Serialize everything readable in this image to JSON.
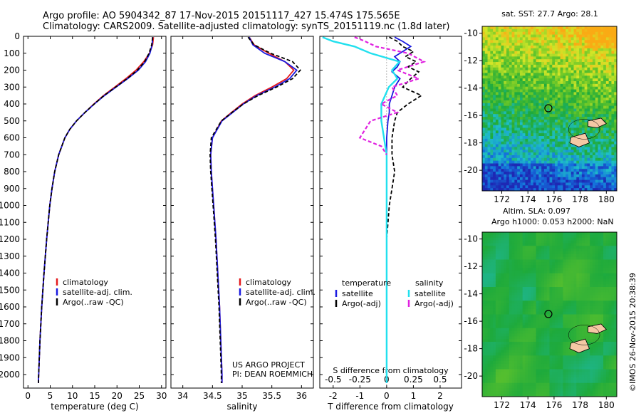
{
  "header": {
    "line1": "Argo profile: AO 5904342_87 17-Nov-2015 20151117_427 15.474S 175.565E",
    "line2": "Climatology: CARS2009. Satellite-adjusted climatology: synTS_20151119.nc (1.8d later)"
  },
  "side_label": "©IMOS 26-Nov-2015 20:38:39",
  "colors": {
    "climatology": "#e41a1c",
    "satellite": "#1a1ae0",
    "argo": "#000000",
    "sal_satellite": "#22e0ee",
    "sal_argo": "#e022e0"
  },
  "chart_data": [
    {
      "type": "line",
      "title": "",
      "xlabel": "temperature (deg C)",
      "ylabel": "",
      "xlim": [
        -1,
        31
      ],
      "ylim": [
        2080,
        0
      ],
      "xticks": [
        0,
        5,
        10,
        15,
        20,
        25,
        30
      ],
      "yticks": [
        0,
        100,
        200,
        300,
        400,
        500,
        600,
        700,
        800,
        900,
        1000,
        1100,
        1200,
        1300,
        1400,
        1500,
        1600,
        1700,
        1800,
        1900,
        2000
      ],
      "legend": {
        "location": "lower-center",
        "entries": [
          "climatology",
          "satellite-adj. clim.",
          "Argo(..raw -QC)"
        ]
      },
      "series": [
        {
          "name": "climatology",
          "depth": [
            5,
            50,
            100,
            150,
            200,
            250,
            300,
            350,
            400,
            450,
            500,
            550,
            600,
            700,
            800,
            900,
            1000,
            1200,
            1400,
            1600,
            1800,
            2000,
            2050
          ],
          "values": [
            28.2,
            28.0,
            27.3,
            26.0,
            24.3,
            22.0,
            19.5,
            17.0,
            14.8,
            12.8,
            10.9,
            9.4,
            8.3,
            6.9,
            6.0,
            5.4,
            4.9,
            4.2,
            3.6,
            3.1,
            2.7,
            2.4,
            2.35
          ]
        },
        {
          "name": "satellite-adj. clim.",
          "depth": [
            5,
            50,
            100,
            150,
            200,
            250,
            300,
            350,
            400,
            450,
            500,
            550,
            600,
            700,
            800,
            900,
            1000,
            1200,
            1400,
            1600,
            1800,
            2000,
            2050
          ],
          "values": [
            28.0,
            27.9,
            27.4,
            26.4,
            24.8,
            22.4,
            19.8,
            17.2,
            14.9,
            12.8,
            10.9,
            9.4,
            8.3,
            6.9,
            6.0,
            5.4,
            4.9,
            4.2,
            3.6,
            3.1,
            2.7,
            2.4,
            2.35
          ]
        },
        {
          "name": "Argo(..raw -QC)",
          "depth": [
            5,
            50,
            100,
            150,
            200,
            250,
            300,
            350,
            400,
            450,
            500,
            550,
            600,
            700,
            800,
            900,
            1000,
            1200,
            1400,
            1600,
            1800,
            2000,
            2050
          ],
          "values": [
            28.0,
            27.8,
            27.2,
            26.2,
            24.6,
            22.3,
            19.7,
            17.1,
            14.9,
            12.8,
            10.9,
            9.4,
            8.3,
            6.9,
            6.0,
            5.4,
            4.9,
            4.2,
            3.6,
            3.1,
            2.7,
            2.4,
            2.35
          ]
        }
      ]
    },
    {
      "type": "line",
      "title": "",
      "xlabel": "salinity",
      "ylabel": "",
      "xlim": [
        33.8,
        36.2
      ],
      "ylim": [
        2080,
        0
      ],
      "xticks": [
        34,
        34.5,
        35,
        35.5,
        36
      ],
      "xticklabels": [
        "34",
        "34.5",
        "35",
        "35.5",
        "36"
      ],
      "legend": {
        "location": "lower-center",
        "entries": [
          "climatology",
          "satellite-adj. clim.",
          "Argo(..raw -QC)"
        ]
      },
      "annotations": [
        "US ARGO PROJECT",
        "PI: DEAN ROEMMICH"
      ],
      "series": [
        {
          "name": "climatology",
          "depth": [
            5,
            50,
            100,
            150,
            200,
            250,
            300,
            350,
            400,
            450,
            500,
            600,
            700,
            800,
            900,
            1000,
            1200,
            1400,
            1600,
            1800,
            2000,
            2050
          ],
          "values": [
            35.12,
            35.2,
            35.45,
            35.72,
            35.87,
            35.75,
            35.5,
            35.22,
            35.0,
            34.82,
            34.65,
            34.5,
            34.47,
            34.48,
            34.5,
            34.52,
            34.56,
            34.59,
            34.62,
            34.64,
            34.66,
            34.66
          ]
        },
        {
          "name": "satellite-adj. clim.",
          "depth": [
            5,
            50,
            100,
            150,
            200,
            250,
            300,
            350,
            400,
            450,
            500,
            600,
            700,
            800,
            900,
            1000,
            1200,
            1400,
            1600,
            1800,
            2000,
            2050
          ],
          "values": [
            35.12,
            35.18,
            35.38,
            35.72,
            35.92,
            35.8,
            35.55,
            35.25,
            35.02,
            34.84,
            34.66,
            34.5,
            34.47,
            34.48,
            34.5,
            34.52,
            34.56,
            34.59,
            34.62,
            34.64,
            34.66,
            34.66
          ]
        },
        {
          "name": "Argo(..raw -QC)",
          "depth": [
            5,
            50,
            100,
            150,
            200,
            250,
            300,
            350,
            400,
            450,
            500,
            600,
            700,
            800,
            900,
            1000,
            1200,
            1400,
            1600,
            1800,
            2000,
            2050
          ],
          "values": [
            35.1,
            35.2,
            35.48,
            35.85,
            35.98,
            35.85,
            35.58,
            35.27,
            35.02,
            34.83,
            34.65,
            34.48,
            34.46,
            34.47,
            34.49,
            34.51,
            34.55,
            34.58,
            34.61,
            34.63,
            34.65,
            34.65
          ]
        }
      ]
    },
    {
      "type": "line",
      "title": "",
      "xlabel": "T difference from climatology",
      "xlabel_top": "S difference from climatology",
      "ylabel": "",
      "xlim": [
        -2.5,
        2.8
      ],
      "ylim": [
        2080,
        0
      ],
      "xticks": [
        -2,
        -1,
        0,
        1,
        2
      ],
      "xticks_top": [
        -0.5,
        -0.25,
        0,
        0.25,
        0.5
      ],
      "xticklabels_top": [
        "-0.5",
        "-0.25",
        "0",
        "0.25",
        "0.5"
      ],
      "legend": {
        "location": "lower-center",
        "groups": [
          {
            "heading": "temperature",
            "entries": [
              "satellite",
              "Argo(-adj)"
            ]
          },
          {
            "heading": "salinity",
            "entries": [
              "satellite",
              "Argo(-adj)"
            ]
          }
        ]
      },
      "series": [
        {
          "name": "temperature satellite",
          "depth": [
            5,
            30,
            60,
            90,
            120,
            150,
            180,
            210,
            250,
            300,
            350,
            400,
            450,
            500,
            600,
            800,
            1000,
            1500,
            2050
          ],
          "values": [
            0.3,
            0.6,
            0.9,
            0.6,
            0.3,
            0.5,
            0.4,
            0.2,
            0.5,
            0.3,
            0.2,
            0.1,
            0.1,
            0.05,
            0.0,
            0.0,
            0.0,
            0.0,
            0.0
          ]
        },
        {
          "name": "temperature Argo(-adj)",
          "depth": [
            5,
            30,
            60,
            90,
            120,
            150,
            180,
            210,
            250,
            300,
            350,
            400,
            450,
            500,
            600,
            700,
            800,
            900,
            1000,
            1200,
            1500,
            2050
          ],
          "values": [
            0.1,
            0.4,
            0.6,
            1.0,
            0.7,
            1.1,
            0.8,
            1.2,
            0.9,
            0.6,
            1.3,
            0.8,
            0.4,
            0.3,
            0.2,
            0.2,
            0.3,
            0.2,
            0.1,
            0.0,
            0.0,
            0.0
          ]
        },
        {
          "name": "salinity satellite",
          "depth": [
            5,
            30,
            60,
            100,
            150,
            200,
            250,
            300,
            400,
            500,
            700,
            900,
            1200,
            1500,
            2050
          ],
          "values": [
            -0.6,
            -0.5,
            -0.3,
            -0.15,
            0.12,
            0.05,
            0.1,
            0.02,
            -0.05,
            -0.05,
            0.0,
            0.0,
            0.0,
            0.0,
            0.0
          ]
        },
        {
          "name": "salinity Argo(-adj)",
          "depth": [
            5,
            30,
            60,
            100,
            150,
            200,
            250,
            300,
            350,
            400,
            450,
            500,
            550,
            600,
            650,
            700
          ],
          "values": [
            -0.3,
            -0.2,
            -0.1,
            0.2,
            0.35,
            0.1,
            0.3,
            0.05,
            0.1,
            -0.05,
            0.1,
            -0.15,
            -0.2,
            -0.25,
            -0.05,
            0.0
          ]
        }
      ]
    },
    {
      "type": "heatmap",
      "title": "sat. SST: 27.7 Argo: 28.1",
      "xlim": [
        170.5,
        180.8
      ],
      "ylim": [
        -21.5,
        -9.5
      ],
      "xticks": [
        172,
        174,
        176,
        178,
        180
      ],
      "yticks": [
        -10,
        -12,
        -14,
        -16,
        -18,
        -20
      ],
      "marker": {
        "lon": 175.565,
        "lat": -15.474
      }
    },
    {
      "type": "heatmap",
      "title": "Altim. SLA: 0.097",
      "subtitle": "Argo h1000: 0.053 h2000: NaN",
      "xlim": [
        170.5,
        180.8
      ],
      "ylim": [
        -21.5,
        -9.5
      ],
      "xticks": [
        172,
        174,
        176,
        178,
        180
      ],
      "yticks": [
        -10,
        -12,
        -14,
        -16,
        -18,
        -20
      ],
      "marker": {
        "lon": 175.565,
        "lat": -15.474
      }
    }
  ]
}
